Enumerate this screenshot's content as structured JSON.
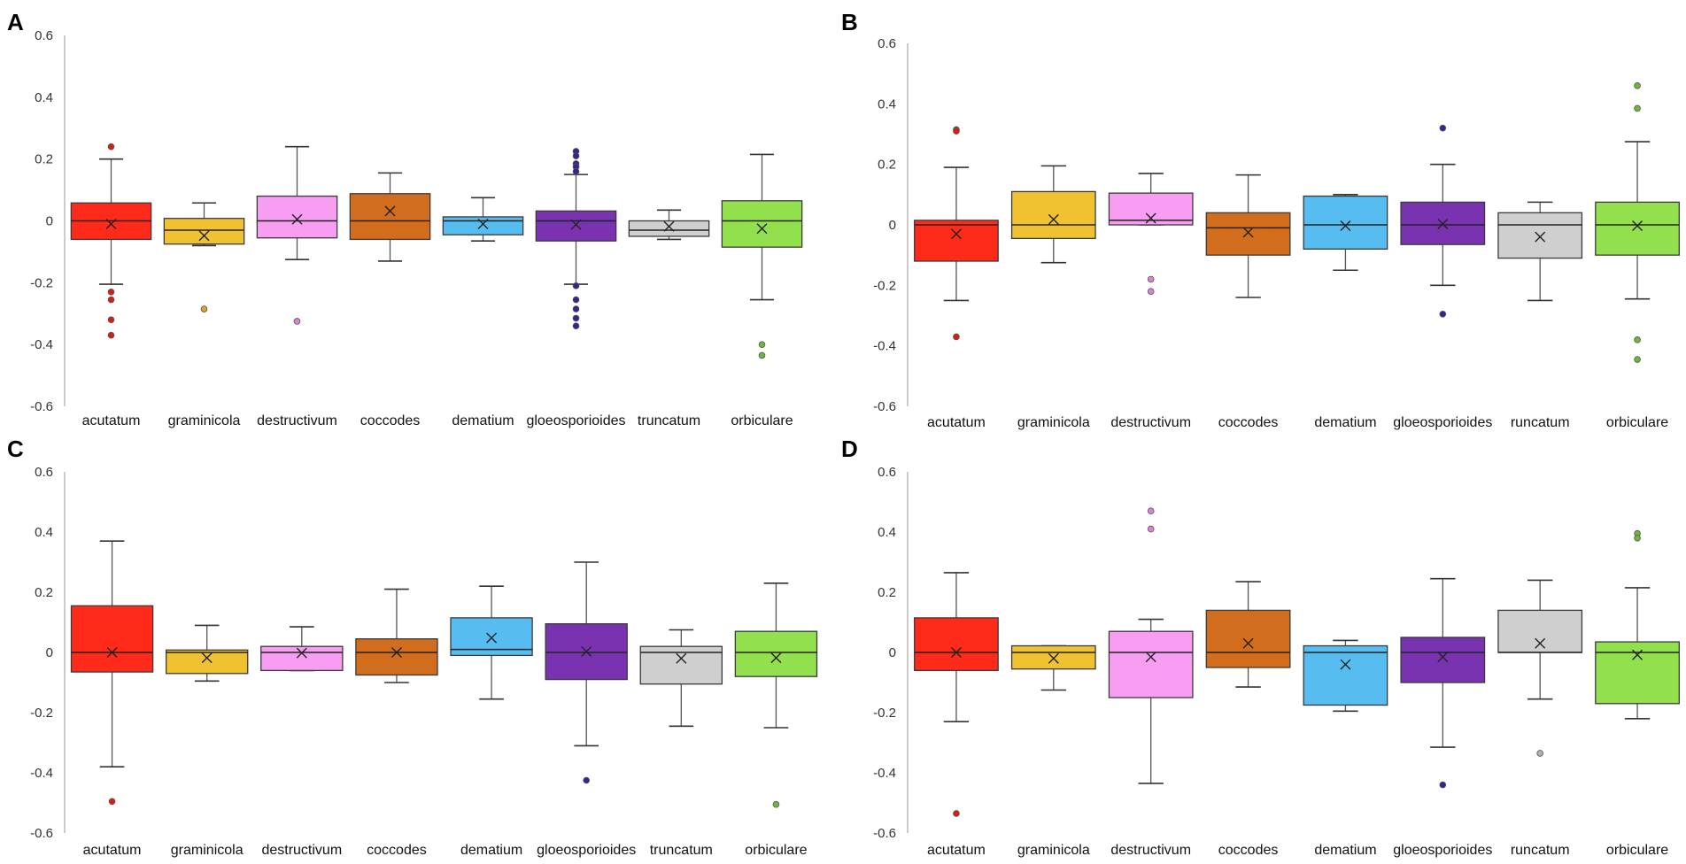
{
  "chart_data": [
    {
      "type": "box",
      "panel_label": "A",
      "categories": [
        "acutatum",
        "graminicola",
        "destructivum",
        "coccodes",
        "dematium",
        "gloeosporioides",
        "truncatum",
        "orbiculare"
      ],
      "ylim": [
        -0.6,
        0.6
      ],
      "yticks": [
        "0.6",
        "0.4",
        "0.2",
        "0",
        "-0.2",
        "-0.4",
        "-0.6"
      ],
      "boxes": [
        {
          "lw": -0.205,
          "q1": -0.06,
          "med": 0.0,
          "q3": 0.058,
          "uw": 0.2,
          "mean": -0.01,
          "outliers": [
            0.24,
            -0.23,
            -0.255,
            -0.32,
            -0.37
          ]
        },
        {
          "lw": -0.08,
          "q1": -0.075,
          "med": -0.03,
          "q3": 0.008,
          "uw": 0.058,
          "mean": -0.048,
          "outliers": [
            -0.285
          ]
        },
        {
          "lw": -0.125,
          "q1": -0.055,
          "med": 0.0,
          "q3": 0.08,
          "uw": 0.24,
          "mean": 0.005,
          "outliers": [
            -0.325
          ]
        },
        {
          "lw": -0.13,
          "q1": -0.06,
          "med": 0.0,
          "q3": 0.088,
          "uw": 0.155,
          "mean": 0.032,
          "outliers": []
        },
        {
          "lw": -0.065,
          "q1": -0.045,
          "med": 0.0,
          "q3": 0.013,
          "uw": 0.075,
          "mean": -0.01,
          "outliers": []
        },
        {
          "lw": -0.205,
          "q1": -0.065,
          "med": 0.0,
          "q3": 0.032,
          "uw": 0.15,
          "mean": -0.012,
          "outliers": [
            0.225,
            0.21,
            0.185,
            0.175,
            0.16,
            -0.21,
            -0.255,
            -0.285,
            -0.315,
            -0.34
          ]
        },
        {
          "lw": -0.06,
          "q1": -0.05,
          "med": -0.03,
          "q3": 0.0,
          "uw": 0.035,
          "mean": -0.018,
          "outliers": []
        },
        {
          "lw": -0.255,
          "q1": -0.085,
          "med": 0.0,
          "q3": 0.065,
          "uw": 0.215,
          "mean": -0.025,
          "outliers": [
            -0.4,
            -0.435
          ]
        }
      ]
    },
    {
      "type": "box",
      "panel_label": "B",
      "categories": [
        "acutatum",
        "graminicola",
        "destructivum",
        "coccodes",
        "dematium",
        "gloeosporioides",
        "runcatum",
        "orbiculare"
      ],
      "ylim": [
        -0.6,
        0.6
      ],
      "yticks": [
        "0.6",
        "0.4",
        "0.2",
        "0",
        "-0.2",
        "-0.4",
        "-0.6"
      ],
      "boxes": [
        {
          "lw": -0.25,
          "q1": -0.12,
          "med": 0.0,
          "q3": 0.015,
          "uw": 0.19,
          "mean": -0.03,
          "outliers": [
            0.315,
            0.31,
            -0.37
          ]
        },
        {
          "lw": -0.125,
          "q1": -0.045,
          "med": 0.0,
          "q3": 0.11,
          "uw": 0.195,
          "mean": 0.018,
          "outliers": []
        },
        {
          "lw": 0.0,
          "q1": 0.0,
          "med": 0.015,
          "q3": 0.105,
          "uw": 0.17,
          "mean": 0.022,
          "outliers": [
            -0.18,
            -0.22
          ]
        },
        {
          "lw": -0.24,
          "q1": -0.1,
          "med": -0.01,
          "q3": 0.04,
          "uw": 0.165,
          "mean": -0.025,
          "outliers": []
        },
        {
          "lw": -0.15,
          "q1": -0.08,
          "med": 0.0,
          "q3": 0.095,
          "uw": 0.1,
          "mean": -0.003,
          "outliers": []
        },
        {
          "lw": -0.2,
          "q1": -0.065,
          "med": 0.0,
          "q3": 0.075,
          "uw": 0.2,
          "mean": 0.003,
          "outliers": [
            0.32,
            -0.295
          ]
        },
        {
          "lw": -0.25,
          "q1": -0.11,
          "med": 0.0,
          "q3": 0.04,
          "uw": 0.075,
          "mean": -0.04,
          "outliers": []
        },
        {
          "lw": -0.245,
          "q1": -0.1,
          "med": 0.0,
          "q3": 0.075,
          "uw": 0.275,
          "mean": -0.003,
          "outliers": [
            0.46,
            0.385,
            -0.38,
            -0.445
          ]
        }
      ]
    },
    {
      "type": "box",
      "panel_label": "C",
      "categories": [
        "acutatum",
        "graminicola",
        "destructivum",
        "coccodes",
        "dematium",
        "gloeosporioides",
        "truncatum",
        "orbiculare"
      ],
      "ylim": [
        -0.6,
        0.6
      ],
      "yticks": [
        "0.6",
        "0.4",
        "0.2",
        "0",
        "-0.2",
        "-0.4",
        "-0.6"
      ],
      "boxes": [
        {
          "lw": -0.38,
          "q1": -0.065,
          "med": 0.0,
          "q3": 0.155,
          "uw": 0.37,
          "mean": 0.0,
          "outliers": [
            -0.495
          ]
        },
        {
          "lw": -0.095,
          "q1": -0.07,
          "med": 0.0,
          "q3": 0.008,
          "uw": 0.09,
          "mean": -0.018,
          "outliers": []
        },
        {
          "lw": -0.06,
          "q1": -0.06,
          "med": 0.0,
          "q3": 0.02,
          "uw": 0.085,
          "mean": -0.002,
          "outliers": []
        },
        {
          "lw": -0.1,
          "q1": -0.075,
          "med": 0.0,
          "q3": 0.045,
          "uw": 0.21,
          "mean": 0.0,
          "outliers": []
        },
        {
          "lw": -0.155,
          "q1": -0.01,
          "med": 0.01,
          "q3": 0.115,
          "uw": 0.22,
          "mean": 0.048,
          "outliers": []
        },
        {
          "lw": -0.31,
          "q1": -0.09,
          "med": 0.0,
          "q3": 0.095,
          "uw": 0.3,
          "mean": 0.003,
          "outliers": [
            -0.425
          ]
        },
        {
          "lw": -0.245,
          "q1": -0.105,
          "med": 0.0,
          "q3": 0.02,
          "uw": 0.075,
          "mean": -0.02,
          "outliers": []
        },
        {
          "lw": -0.25,
          "q1": -0.08,
          "med": 0.0,
          "q3": 0.07,
          "uw": 0.23,
          "mean": -0.018,
          "outliers": [
            -0.505
          ]
        }
      ]
    },
    {
      "type": "box",
      "panel_label": "D",
      "categories": [
        "acutatum",
        "graminicola",
        "destructivum",
        "coccodes",
        "dematium",
        "gloeosporioides",
        "runcatum",
        "orbiculare"
      ],
      "ylim": [
        -0.6,
        0.6
      ],
      "yticks": [
        "0.6",
        "0.4",
        "0.2",
        "0",
        "-0.2",
        "-0.4",
        "-0.6"
      ],
      "boxes": [
        {
          "lw": -0.23,
          "q1": -0.06,
          "med": 0.0,
          "q3": 0.115,
          "uw": 0.265,
          "mean": 0.0,
          "outliers": [
            -0.535
          ]
        },
        {
          "lw": -0.125,
          "q1": -0.055,
          "med": 0.0,
          "q3": 0.022,
          "uw": 0.022,
          "mean": -0.02,
          "outliers": []
        },
        {
          "lw": -0.435,
          "q1": -0.15,
          "med": 0.0,
          "q3": 0.07,
          "uw": 0.11,
          "mean": -0.015,
          "outliers": [
            0.47,
            0.41
          ]
        },
        {
          "lw": -0.115,
          "q1": -0.05,
          "med": 0.0,
          "q3": 0.14,
          "uw": 0.235,
          "mean": 0.03,
          "outliers": []
        },
        {
          "lw": -0.195,
          "q1": -0.175,
          "med": 0.0,
          "q3": 0.022,
          "uw": 0.04,
          "mean": -0.04,
          "outliers": []
        },
        {
          "lw": -0.315,
          "q1": -0.1,
          "med": 0.0,
          "q3": 0.05,
          "uw": 0.245,
          "mean": -0.015,
          "outliers": [
            -0.44
          ]
        },
        {
          "lw": -0.155,
          "q1": 0.0,
          "med": 0.0,
          "q3": 0.14,
          "uw": 0.24,
          "mean": 0.03,
          "outliers": [
            -0.335
          ]
        },
        {
          "lw": -0.22,
          "q1": -0.17,
          "med": 0.0,
          "q3": 0.035,
          "uw": 0.215,
          "mean": -0.008,
          "outliers": [
            0.395,
            0.38
          ]
        }
      ]
    }
  ],
  "series_colors": [
    "#ff2a1a",
    "#f0c232",
    "#f79ef2",
    "#d26d1e",
    "#57bcf0",
    "#7a33b0",
    "#cfcfcf",
    "#93e04e"
  ],
  "outlier_colors": [
    "#d81e10",
    "#d8a628",
    "#df80d8",
    "#b85a16",
    "#3aa0d6",
    "#3a2090",
    "#b0b0b0",
    "#6cb83a"
  ]
}
